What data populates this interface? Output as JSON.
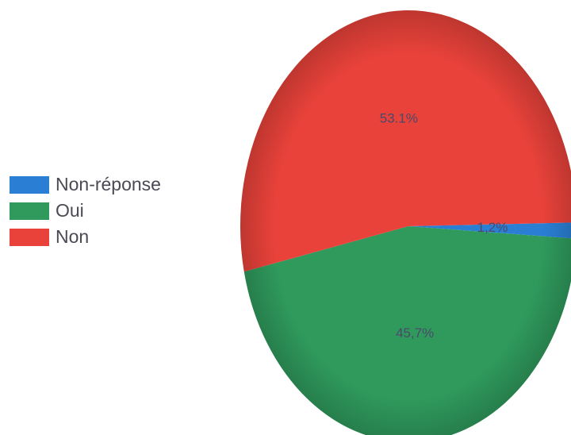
{
  "chart_data": {
    "type": "pie",
    "categories": [
      "Non-réponse",
      "Oui",
      "Non"
    ],
    "values": [
      1.2,
      45.7,
      53.1
    ],
    "value_labels": [
      "1,2%",
      "45,7%",
      "53.1%"
    ],
    "colors": [
      "#2a7fd4",
      "#2f9a5c",
      "#e8423a"
    ],
    "legend": "left"
  }
}
